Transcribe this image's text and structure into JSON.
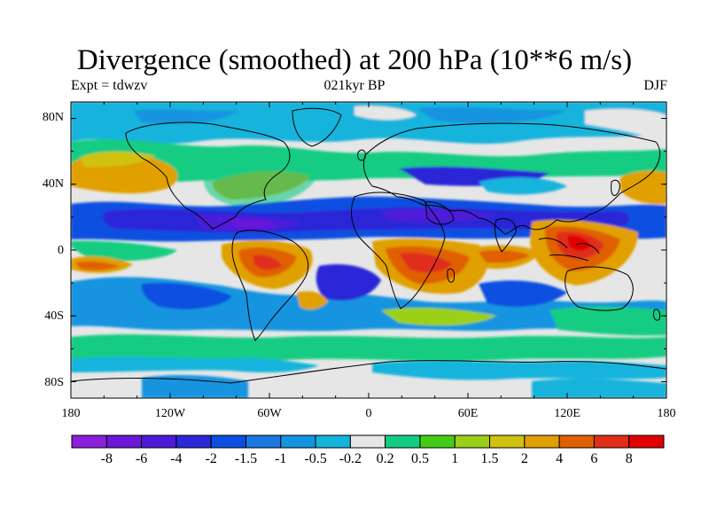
{
  "title": "Divergence (smoothed) at 200 hPa (10**6 m/s)",
  "subtitle_left": "Expt = tdwzv",
  "subtitle_center": "021kyr BP",
  "subtitle_right": "DJF",
  "axes": {
    "lat_ticks": [
      "80N",
      "40N",
      "0",
      "40S",
      "80S"
    ],
    "lon_ticks": [
      "180",
      "120W",
      "60W",
      "0",
      "60E",
      "120E",
      "180"
    ]
  },
  "colorbar": {
    "labels": [
      "-8",
      "-6",
      "-4",
      "-2",
      "-1.5",
      "-1",
      "-0.5",
      "-0.2",
      "0.2",
      "0.5",
      "1",
      "1.5",
      "2",
      "4",
      "6",
      "8"
    ],
    "colors": [
      "#8a1fdc",
      "#6a16d8",
      "#4e1ad8",
      "#2a28d8",
      "#0a50e0",
      "#1a78e0",
      "#1494e0",
      "#14b4dc",
      "#e6e6e6",
      "#12cc82",
      "#44cc18",
      "#9cd018",
      "#d0c210",
      "#e0a000",
      "#e06000",
      "#e02e1a",
      "#e00000"
    ]
  },
  "map": {
    "projection": "cylindrical-equidistant",
    "lon_range": [
      -180,
      180
    ],
    "lat_range": [
      -90,
      90
    ]
  }
}
